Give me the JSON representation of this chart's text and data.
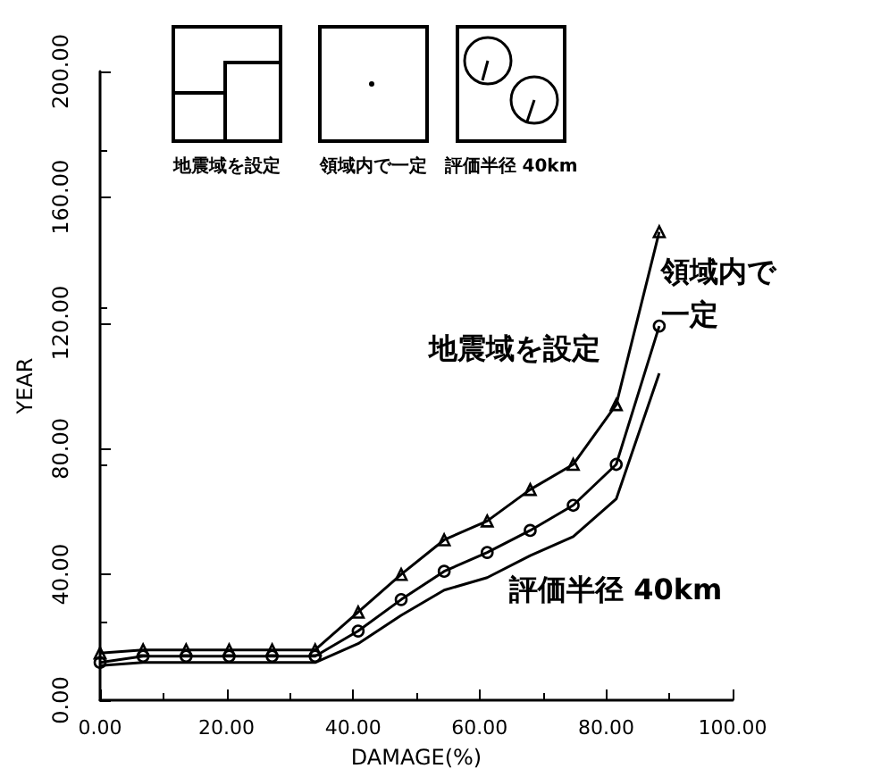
{
  "chart_data": {
    "type": "line",
    "xlabel": "DAMAGE(%)",
    "ylabel": "YEAR",
    "x": [
      0,
      6.8,
      13.6,
      20.4,
      27.2,
      34,
      40.8,
      47.6,
      54.4,
      61.2,
      68,
      74.8,
      81.6,
      88.4
    ],
    "series": [
      {
        "name": "地震域を設定",
        "color": "#000000",
        "marker": "triangle",
        "values": [
          15,
          16,
          16,
          16,
          16,
          16,
          28,
          40,
          51,
          57,
          67,
          75,
          94,
          149
        ]
      },
      {
        "name": "領域内で一定",
        "color": "#000000",
        "marker": "circle",
        "values": [
          12,
          14,
          14,
          14,
          14,
          14,
          22,
          32,
          41,
          47,
          54,
          62,
          75,
          119
        ]
      },
      {
        "name": "評価半径 40km",
        "color": "#000000",
        "marker": "none",
        "values": [
          11,
          12,
          12,
          12,
          12,
          12,
          18,
          27,
          35,
          39,
          46,
          52,
          64,
          104
        ]
      }
    ],
    "xlim": [
      0,
      100
    ],
    "xticks": [
      {
        "value": 0,
        "label": "0.00"
      },
      {
        "value": 20,
        "label": "20.00"
      },
      {
        "value": 40,
        "label": "40.00"
      },
      {
        "value": 60,
        "label": "60.00"
      },
      {
        "value": 80,
        "label": "80.00"
      },
      {
        "value": 100,
        "label": "100.00"
      }
    ],
    "ylim": [
      0,
      200
    ],
    "yticks": [
      {
        "value": 0,
        "label": "0.00"
      },
      {
        "value": 40,
        "label": "40.00"
      },
      {
        "value": 80,
        "label": "80.00"
      },
      {
        "value": 120,
        "label": "120.00"
      },
      {
        "value": 160,
        "label": "160.00"
      },
      {
        "value": 200,
        "label": "200.00"
      }
    ],
    "annotations": [
      "地震域を設定",
      "領域内で一定",
      "評価半径 40km"
    ],
    "grid": false,
    "legend": false
  }
}
